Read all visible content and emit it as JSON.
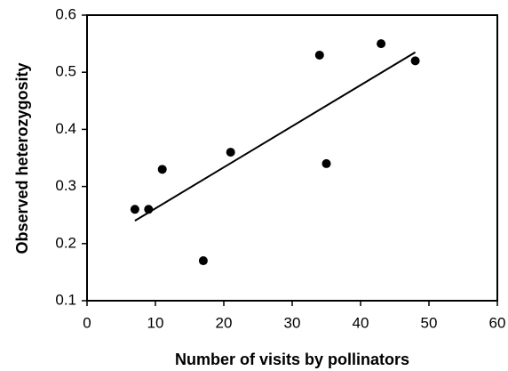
{
  "chart_data": {
    "type": "scatter",
    "x_label": "Number of visits by pollinators",
    "y_label": "Observed heterozygosity",
    "x": [
      7,
      9,
      11,
      17,
      21,
      34,
      35,
      43,
      48
    ],
    "values": [
      0.26,
      0.26,
      0.33,
      0.17,
      0.36,
      0.53,
      0.34,
      0.55,
      0.52
    ],
    "color": "#000000",
    "trendline": {
      "x": [
        7,
        48
      ],
      "y": [
        0.24,
        0.535
      ]
    },
    "xlim": [
      0,
      60
    ],
    "xticks": [
      0,
      10,
      20,
      30,
      40,
      50,
      60
    ],
    "ylim": [
      0.1,
      0.6
    ],
    "yticks": [
      0.1,
      0.2,
      0.3,
      0.4,
      0.5,
      0.6
    ],
    "grid": false
  }
}
